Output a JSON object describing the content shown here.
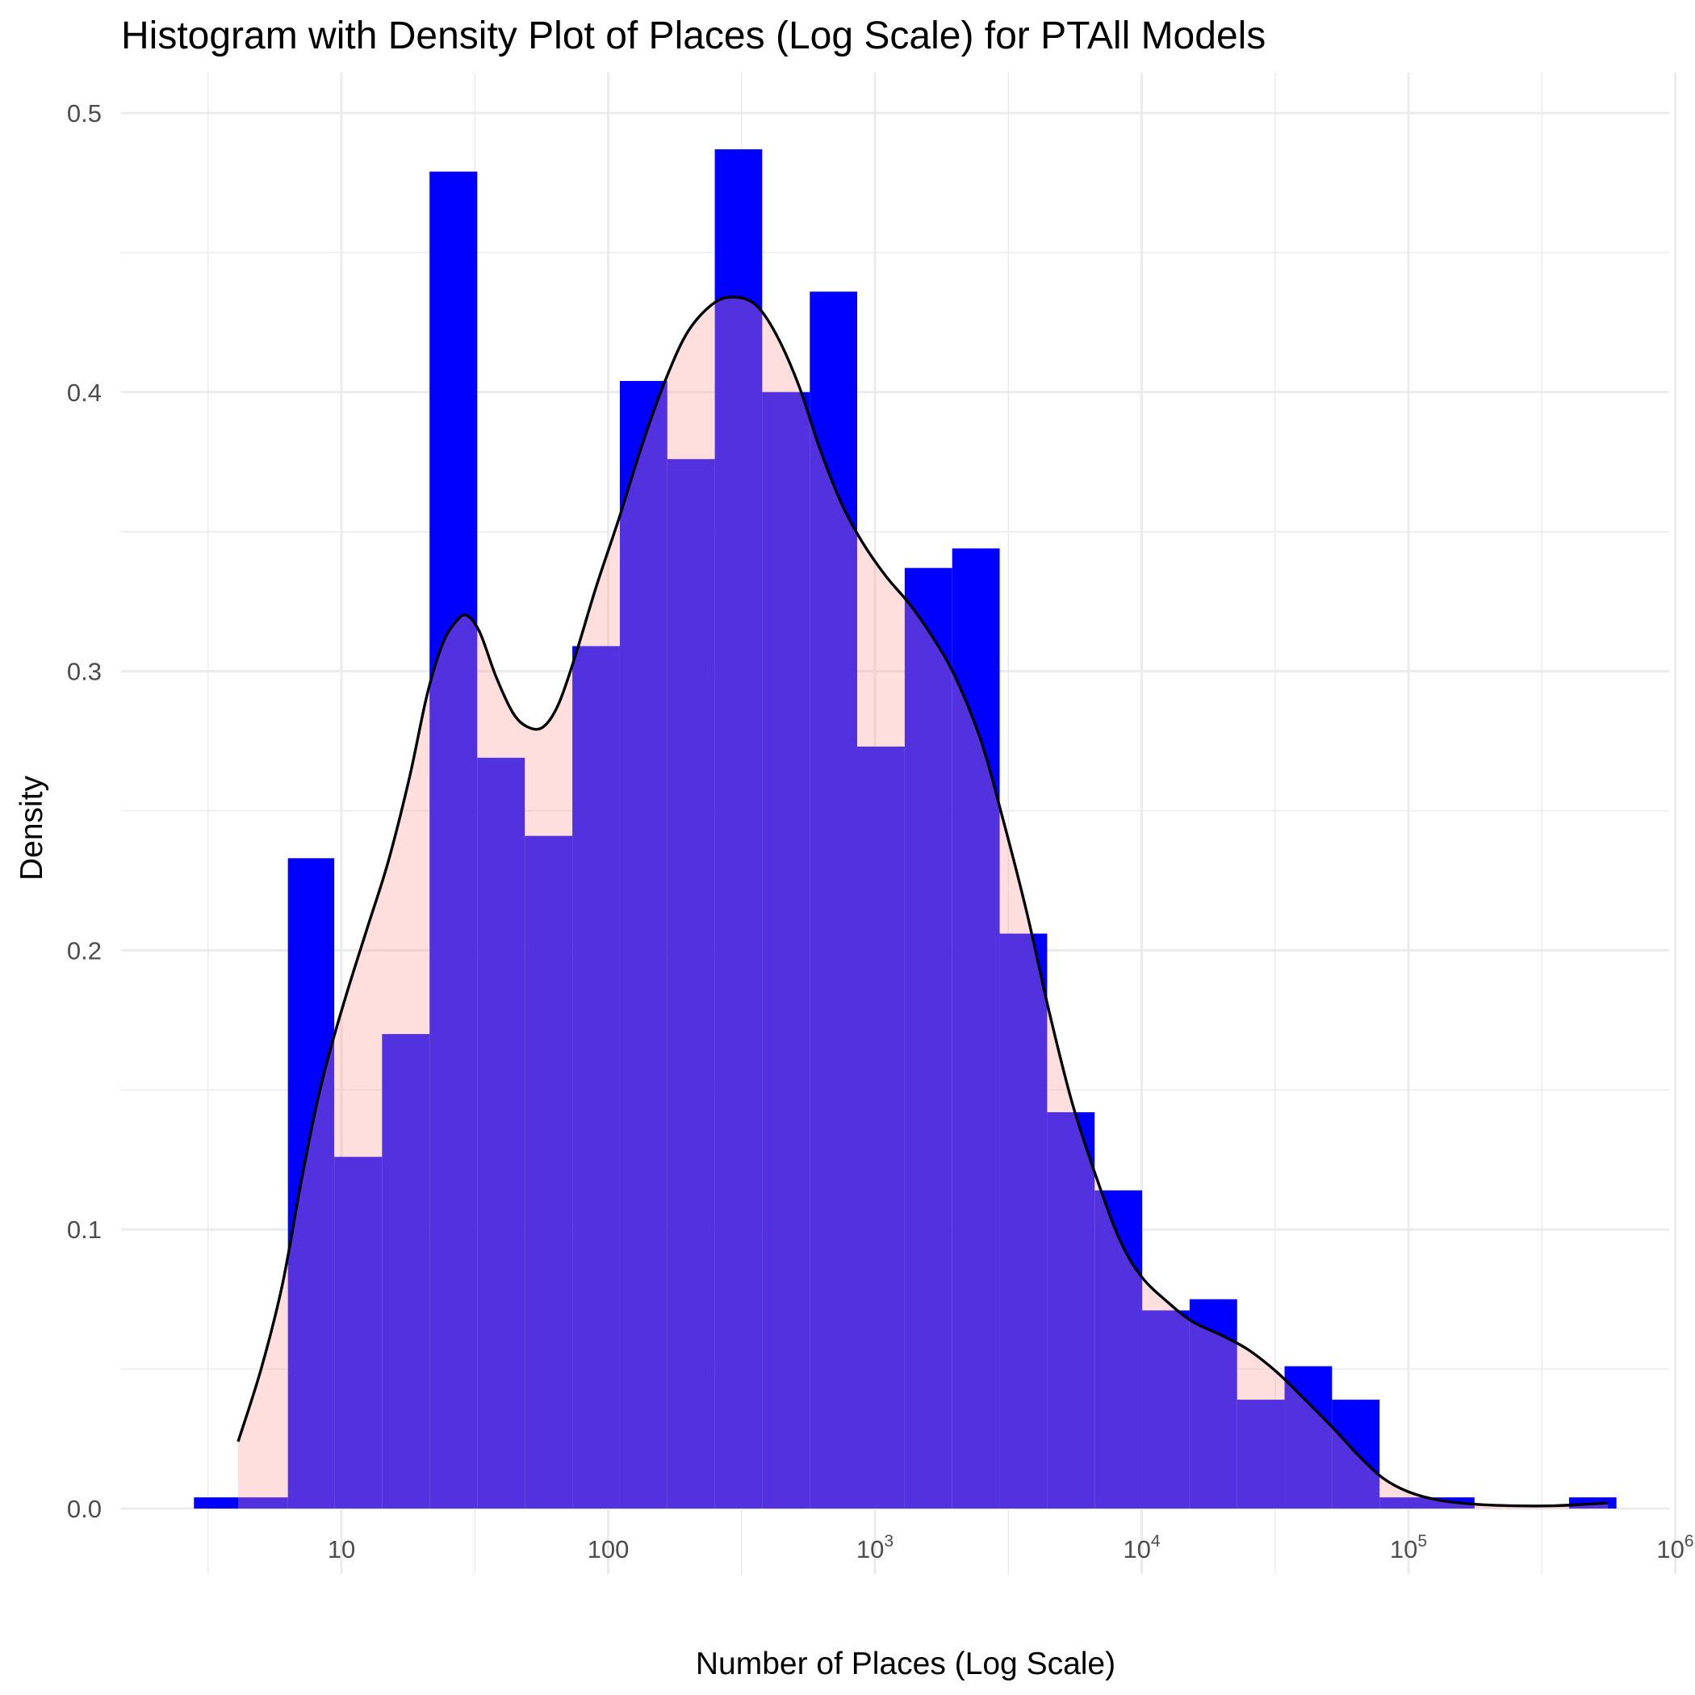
{
  "chart_data": {
    "type": "bar",
    "title": "Histogram with Density Plot of Places (Log Scale) for PTAll Models",
    "xlabel": "Number of Places (Log Scale)",
    "ylabel": "Density",
    "x_scale": "log10",
    "xlim": [
      1,
      1000000
    ],
    "ylim": [
      0,
      0.5
    ],
    "grid": true,
    "x_ticks": [
      {
        "value": 10,
        "base": "10",
        "exp": ""
      },
      {
        "value": 100,
        "base": "100",
        "exp": ""
      },
      {
        "value": 1000,
        "base": "10",
        "exp": "3"
      },
      {
        "value": 10000,
        "base": "10",
        "exp": "4"
      },
      {
        "value": 100000,
        "base": "10",
        "exp": "5"
      },
      {
        "value": 1000000,
        "base": "10",
        "exp": "6"
      }
    ],
    "y_ticks": [
      {
        "value": 0,
        "label": "0.0"
      },
      {
        "value": 0.1,
        "label": "0.1"
      },
      {
        "value": 0.2,
        "label": "0.2"
      },
      {
        "value": 0.3,
        "label": "0.3"
      },
      {
        "value": 0.4,
        "label": "0.4"
      },
      {
        "value": 0.5,
        "label": "0.5"
      }
    ],
    "series": [
      {
        "kind": "histogram",
        "color": "#0000ff",
        "bins": [
          {
            "x0": 2.8,
            "x1": 4.1,
            "density": 0.004
          },
          {
            "x0": 4.1,
            "x1": 6.3,
            "density": 0.004
          },
          {
            "x0": 6.3,
            "x1": 9.4,
            "density": 0.233
          },
          {
            "x0": 9.4,
            "x1": 14.2,
            "density": 0.126
          },
          {
            "x0": 14.2,
            "x1": 21.4,
            "density": 0.17
          },
          {
            "x0": 21.4,
            "x1": 32.3,
            "density": 0.479
          },
          {
            "x0": 32.3,
            "x1": 48.7,
            "density": 0.269
          },
          {
            "x0": 48.7,
            "x1": 73.4,
            "density": 0.241
          },
          {
            "x0": 73.4,
            "x1": 110.6,
            "density": 0.309
          },
          {
            "x0": 110.6,
            "x1": 166.6,
            "density": 0.404
          },
          {
            "x0": 166.6,
            "x1": 251,
            "density": 0.376
          },
          {
            "x0": 251,
            "x1": 378,
            "density": 0.487
          },
          {
            "x0": 378,
            "x1": 570,
            "density": 0.4
          },
          {
            "x0": 570,
            "x1": 858,
            "density": 0.436
          },
          {
            "x0": 858,
            "x1": 1293,
            "density": 0.273
          },
          {
            "x0": 1293,
            "x1": 1948,
            "density": 0.337
          },
          {
            "x0": 1948,
            "x1": 2935,
            "density": 0.344
          },
          {
            "x0": 2935,
            "x1": 4422,
            "density": 0.206
          },
          {
            "x0": 4422,
            "x1": 6662,
            "density": 0.142
          },
          {
            "x0": 6662,
            "x1": 10037,
            "density": 0.114
          },
          {
            "x0": 10037,
            "x1": 15122,
            "density": 0.071
          },
          {
            "x0": 15122,
            "x1": 22783,
            "density": 0.075
          },
          {
            "x0": 22783,
            "x1": 34325,
            "density": 0.039
          },
          {
            "x0": 34325,
            "x1": 51714,
            "density": 0.051
          },
          {
            "x0": 51714,
            "x1": 77912,
            "density": 0.039
          },
          {
            "x0": 77912,
            "x1": 117382,
            "density": 0.004
          },
          {
            "x0": 117382,
            "x1": 176848,
            "density": 0.004
          },
          {
            "x0": 400000,
            "x1": 602000,
            "density": 0.004
          }
        ]
      },
      {
        "kind": "density",
        "fill_color": "#ff9999",
        "fill_opacity": 0.32,
        "line_color": "#000000",
        "points": [
          [
            4.1,
            0.024
          ],
          [
            5.0,
            0.05
          ],
          [
            6.0,
            0.08
          ],
          [
            7.0,
            0.115
          ],
          [
            8.0,
            0.143
          ],
          [
            9.0,
            0.163
          ],
          [
            10.5,
            0.185
          ],
          [
            12.5,
            0.208
          ],
          [
            15.0,
            0.232
          ],
          [
            18.0,
            0.262
          ],
          [
            21.0,
            0.292
          ],
          [
            24.0,
            0.31
          ],
          [
            27.0,
            0.318
          ],
          [
            29.5,
            0.32
          ],
          [
            33.0,
            0.314
          ],
          [
            38.0,
            0.298
          ],
          [
            44.0,
            0.285
          ],
          [
            50.0,
            0.28
          ],
          [
            57.0,
            0.28
          ],
          [
            65.0,
            0.288
          ],
          [
            75.0,
            0.305
          ],
          [
            90.0,
            0.33
          ],
          [
            110.0,
            0.355
          ],
          [
            135.0,
            0.382
          ],
          [
            165.0,
            0.405
          ],
          [
            200.0,
            0.422
          ],
          [
            250.0,
            0.432
          ],
          [
            300.0,
            0.434
          ],
          [
            360.0,
            0.431
          ],
          [
            430.0,
            0.42
          ],
          [
            520.0,
            0.402
          ],
          [
            620.0,
            0.38
          ],
          [
            750.0,
            0.36
          ],
          [
            900.0,
            0.346
          ],
          [
            1100.0,
            0.334
          ],
          [
            1350.0,
            0.324
          ],
          [
            1650.0,
            0.312
          ],
          [
            2000.0,
            0.298
          ],
          [
            2500.0,
            0.275
          ],
          [
            3000.0,
            0.248
          ],
          [
            3700.0,
            0.214
          ],
          [
            4500.0,
            0.178
          ],
          [
            5500.0,
            0.145
          ],
          [
            6800.0,
            0.118
          ],
          [
            8300.0,
            0.096
          ],
          [
            10000.0,
            0.083
          ],
          [
            12500.0,
            0.074
          ],
          [
            15500.0,
            0.067
          ],
          [
            20000.0,
            0.062
          ],
          [
            25000.0,
            0.057
          ],
          [
            32000.0,
            0.049
          ],
          [
            40000.0,
            0.04
          ],
          [
            52000.0,
            0.029
          ],
          [
            65000.0,
            0.019
          ],
          [
            80000.0,
            0.011
          ],
          [
            100000.0,
            0.006
          ],
          [
            130000.0,
            0.003
          ],
          [
            180000.0,
            0.0015
          ],
          [
            250000.0,
            0.001
          ],
          [
            350000.0,
            0.001
          ],
          [
            450000.0,
            0.0015
          ],
          [
            560000.0,
            0.002
          ]
        ]
      }
    ]
  }
}
